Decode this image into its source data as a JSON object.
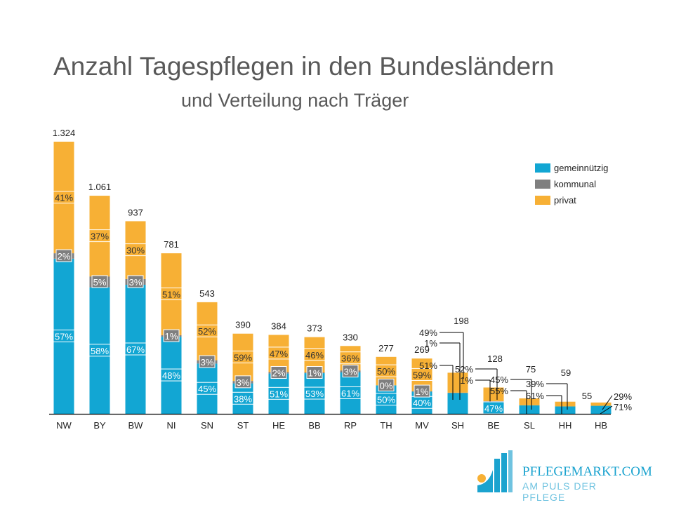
{
  "chart_data": {
    "type": "bar",
    "stacked": true,
    "title": "Anzahl Tagespflegen in den Bundesländern",
    "subtitle": "und Verteilung nach Träger",
    "categories": [
      "NW",
      "BY",
      "BW",
      "NI",
      "SN",
      "ST",
      "HE",
      "BB",
      "RP",
      "TH",
      "MV",
      "SH",
      "BE",
      "SL",
      "HH",
      "HB"
    ],
    "totals": [
      1324,
      1061,
      937,
      781,
      543,
      390,
      384,
      373,
      330,
      277,
      269,
      198,
      128,
      75,
      59,
      55
    ],
    "total_labels": [
      "1.324",
      "1.061",
      "937",
      "781",
      "543",
      "390",
      "384",
      "373",
      "330",
      "277",
      "269",
      "198",
      "128",
      "75",
      "59",
      "55"
    ],
    "series": [
      {
        "name": "gemeinnützig",
        "color": "#12a6d3",
        "percent": [
          57,
          58,
          67,
          48,
          45,
          38,
          51,
          53,
          61,
          50,
          40,
          51,
          47,
          55,
          61,
          71
        ]
      },
      {
        "name": "kommunal",
        "color": "#7f7f7f",
        "percent": [
          2,
          5,
          3,
          1,
          3,
          3,
          2,
          1,
          3,
          0,
          1,
          1,
          1,
          0,
          0,
          0
        ]
      },
      {
        "name": "privat",
        "color": "#f7b035",
        "percent": [
          41,
          37,
          30,
          51,
          52,
          59,
          47,
          46,
          36,
          50,
          59,
          49,
          52,
          45,
          39,
          29
        ]
      }
    ],
    "ylim": [
      0,
      1324
    ],
    "grid": false,
    "legend": "top-right"
  },
  "logo": {
    "name": "PFLEGEMARKT.COM",
    "tagline": "AM PULS DER PFLEGE"
  }
}
